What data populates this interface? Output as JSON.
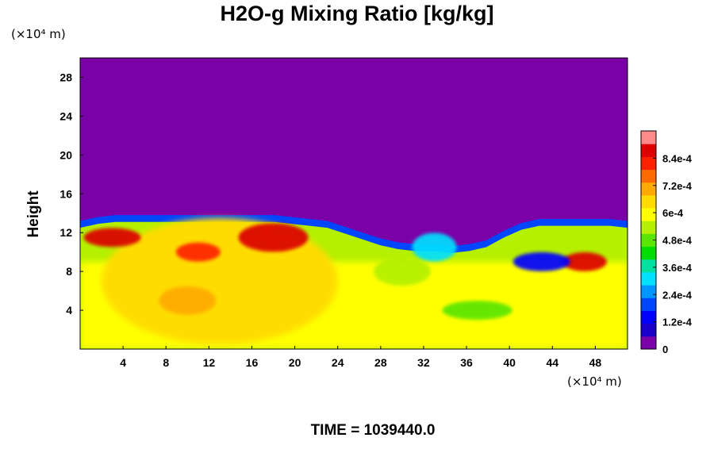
{
  "chart_data": {
    "type": "heatmap",
    "title": "H2O-g Mixing Ratio [kg/kg]",
    "ylabel": "Height",
    "x_unit": "(×10⁴ m)",
    "y_unit": "(×10⁴ m)",
    "footer": "TIME = 1039440.0",
    "xlim": [
      0,
      51
    ],
    "ylim": [
      0,
      30
    ],
    "x_ticks": [
      4,
      8,
      12,
      16,
      20,
      24,
      28,
      32,
      36,
      40,
      44,
      48
    ],
    "y_ticks": [
      4,
      8,
      12,
      16,
      20,
      24,
      28
    ],
    "colorbar": {
      "range": [
        0,
        0.00096
      ],
      "ticks": [
        "0",
        "1.2e-4",
        "2.4e-4",
        "3.6e-4",
        "4.8e-4",
        "6e-4",
        "7.2e-4",
        "8.4e-4"
      ],
      "tick_values": [
        0,
        0.00012,
        0.00024,
        0.00036,
        0.00048,
        0.0006,
        0.00072,
        0.00084
      ],
      "colors": [
        "#7a00a8",
        "#1a00c8",
        "#0000ff",
        "#0046ff",
        "#0096ff",
        "#00e0ff",
        "#00e0a0",
        "#00dc00",
        "#5ae600",
        "#b4f000",
        "#ffff00",
        "#ffdc00",
        "#ffaa00",
        "#ff6a00",
        "#ff2000",
        "#dc0000",
        "#ff8a8a"
      ]
    },
    "field_description_free": true,
    "field": {
      "upper_region_value": 0,
      "moist_layer_top_height": [
        13.2,
        13.6,
        13.8,
        13.8,
        13.8,
        13.8,
        13.8,
        13.8,
        13.8,
        13.8,
        13.8,
        13.8,
        13.6,
        13.4,
        13.2,
        12.6,
        12.0,
        11.4,
        11.0,
        10.8,
        10.8,
        10.6,
        10.8,
        11.2,
        12.2,
        13.0,
        13.4,
        13.4,
        13.4,
        13.4,
        13.4,
        13.2
      ],
      "cells": [
        {
          "x": 11,
          "y": 10,
          "value": 0.0008
        },
        {
          "x": 10,
          "y": 5,
          "value": 0.0007
        },
        {
          "x": 19,
          "y": 5,
          "value": 0.00066
        },
        {
          "x": 15,
          "y": 8,
          "value": 0.00064
        },
        {
          "x": 3,
          "y": 11.5,
          "value": 0.0009
        },
        {
          "x": 18,
          "y": 11.5,
          "value": 0.0009
        },
        {
          "x": 47,
          "y": 9,
          "value": 0.00088
        },
        {
          "x": 30,
          "y": 8,
          "value": 0.00055
        },
        {
          "x": 37,
          "y": 4,
          "value": 0.0005
        },
        {
          "x": 33,
          "y": 10.5,
          "value": 0.0003
        },
        {
          "x": 43,
          "y": 9,
          "value": 0.00012
        }
      ]
    }
  }
}
